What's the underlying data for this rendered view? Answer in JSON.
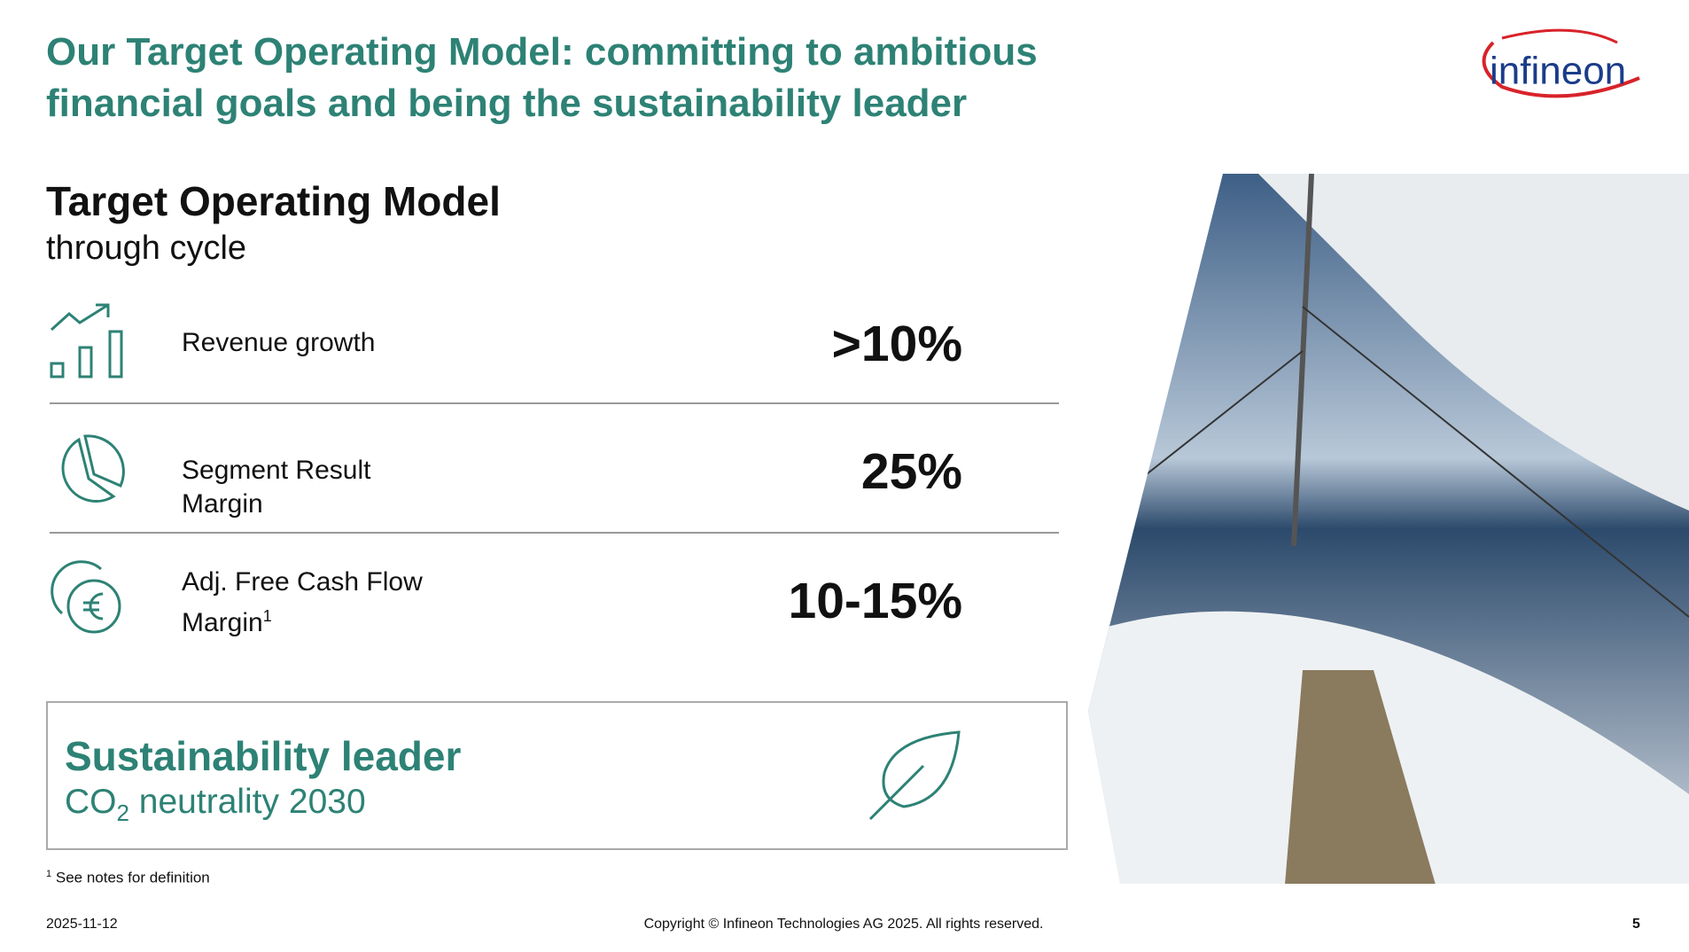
{
  "header": {
    "title": "Our Target Operating Model: committing to ambitious financial goals and being the sustainability leader",
    "logo": "infineon"
  },
  "section": {
    "title": "Target Operating Model",
    "subtitle": "through cycle"
  },
  "metrics": [
    {
      "label": "Revenue growth",
      "value": ">10%"
    },
    {
      "label": "Segment Result Margin",
      "value": "25%"
    },
    {
      "label": "Adj. Free Cash Flow Margin",
      "footnote_mark": "1",
      "value": "10-15%"
    }
  ],
  "sustainability": {
    "title": "Sustainability leader",
    "subtitle_prefix": "CO",
    "subtitle_subscript": "2",
    "subtitle_suffix": " neutrality 2030"
  },
  "footnote": {
    "mark": "1",
    "text": "See notes for definition"
  },
  "footer": {
    "date": "2025-11-12",
    "copyright": "Copyright © Infineon Technologies AG 2025. All rights reserved.",
    "page": "5"
  }
}
